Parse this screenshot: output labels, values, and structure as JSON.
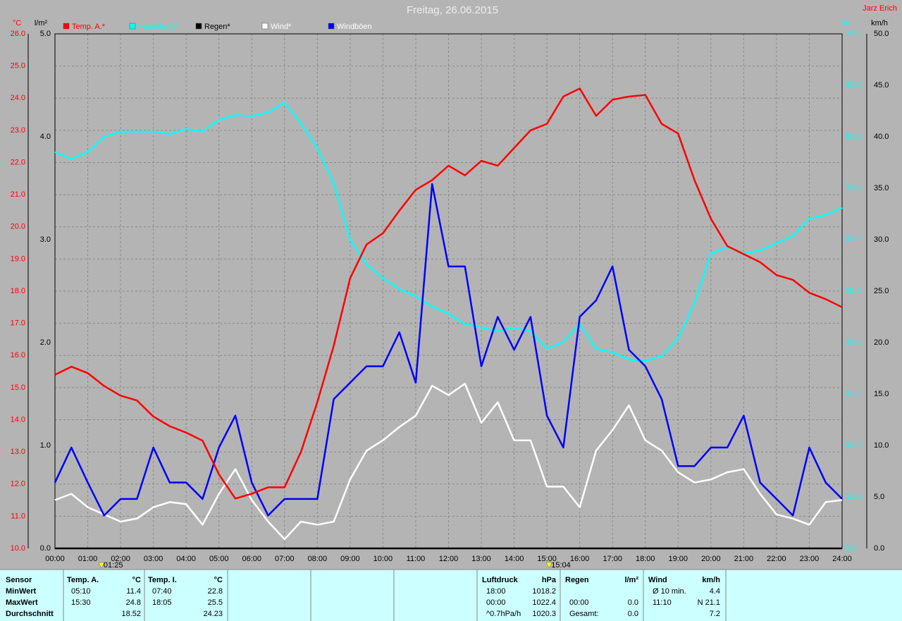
{
  "chart_data": {
    "type": "line",
    "title": "Freitag, 26.06.2015",
    "author": "Jarz Erich",
    "x": [
      0,
      0.5,
      1,
      1.5,
      2,
      2.5,
      3,
      3.5,
      4,
      4.5,
      5,
      5.5,
      6,
      6.5,
      7,
      7.5,
      8,
      8.5,
      9,
      9.5,
      10,
      10.5,
      11,
      11.5,
      12,
      12.5,
      13,
      13.5,
      14,
      14.5,
      15,
      15.5,
      16,
      16.5,
      17,
      17.5,
      18,
      18.5,
      19,
      19.5,
      20,
      20.5,
      21,
      21.5,
      22,
      22.5,
      23,
      23.5,
      24
    ],
    "xlim": [
      0,
      24
    ],
    "xticks": [
      {
        "value": 0,
        "label": "00:00"
      },
      {
        "value": 1,
        "label": "01:00"
      },
      {
        "value": 2,
        "label": "02:00"
      },
      {
        "value": 3,
        "label": "03:00"
      },
      {
        "value": 4,
        "label": "04:00"
      },
      {
        "value": 5,
        "label": "05:00"
      },
      {
        "value": 6,
        "label": "06:00"
      },
      {
        "value": 7,
        "label": "07:00"
      },
      {
        "value": 8,
        "label": "08:00"
      },
      {
        "value": 9,
        "label": "09:00"
      },
      {
        "value": 10,
        "label": "10:00"
      },
      {
        "value": 11,
        "label": "11:00"
      },
      {
        "value": 12,
        "label": "12:00"
      },
      {
        "value": 13,
        "label": "13:00"
      },
      {
        "value": 14,
        "label": "14:00"
      },
      {
        "value": 15,
        "label": "15:00"
      },
      {
        "value": 16,
        "label": "16:00"
      },
      {
        "value": 17,
        "label": "17:00"
      },
      {
        "value": 18,
        "label": "18:00"
      },
      {
        "value": 19,
        "label": "19:00"
      },
      {
        "value": 20,
        "label": "20:00"
      },
      {
        "value": 21,
        "label": "21:00"
      },
      {
        "value": 22,
        "label": "22:00"
      },
      {
        "value": 23,
        "label": "23:00"
      },
      {
        "value": 24,
        "label": "24:00"
      }
    ],
    "markers": [
      {
        "value": 1.4167,
        "label": "01:25"
      },
      {
        "value": 15.0667,
        "label": "15:04"
      }
    ],
    "grid": true,
    "axes": [
      {
        "unit": "°C",
        "color": "#ff0000",
        "lim": [
          10,
          26
        ],
        "ticks": [
          {
            "value": 10,
            "label": "10.0"
          },
          {
            "value": 11,
            "label": "11.0"
          },
          {
            "value": 12,
            "label": "12.0"
          },
          {
            "value": 13,
            "label": "13.0"
          },
          {
            "value": 14,
            "label": "14.0"
          },
          {
            "value": 15,
            "label": "15.0"
          },
          {
            "value": 16,
            "label": "16.0"
          },
          {
            "value": 17,
            "label": "17.0"
          },
          {
            "value": 18,
            "label": "18.0"
          },
          {
            "value": 19,
            "label": "19.0"
          },
          {
            "value": 20,
            "label": "20.0"
          },
          {
            "value": 21,
            "label": "21.0"
          },
          {
            "value": 22,
            "label": "22.0"
          },
          {
            "value": 23,
            "label": "23.0"
          },
          {
            "value": 24,
            "label": "24.0"
          },
          {
            "value": 25,
            "label": "25.0"
          },
          {
            "value": 26,
            "label": "26.0"
          }
        ]
      },
      {
        "unit": "l/m²",
        "color": "#000000",
        "lim": [
          0,
          5
        ],
        "ticks": [
          {
            "value": 0,
            "label": "0.0"
          },
          {
            "value": 1,
            "label": "1.0"
          },
          {
            "value": 2,
            "label": "2.0"
          },
          {
            "value": 3,
            "label": "3.0"
          },
          {
            "value": 4,
            "label": "4.0"
          },
          {
            "value": 5,
            "label": "5.0"
          }
        ]
      },
      {
        "unit": "%",
        "color": "#00ffff",
        "lim": [
          0,
          100
        ],
        "ticks": [
          {
            "value": 0,
            "label": "0.0"
          },
          {
            "value": 10,
            "label": "10.0"
          },
          {
            "value": 20,
            "label": "20.0"
          },
          {
            "value": 30,
            "label": "30.0"
          },
          {
            "value": 40,
            "label": "40.0"
          },
          {
            "value": 50,
            "label": "50.0"
          },
          {
            "value": 60,
            "label": "60.0"
          },
          {
            "value": 70,
            "label": "70.0"
          },
          {
            "value": 80,
            "label": "80.0"
          },
          {
            "value": 90,
            "label": "90.0"
          },
          100
        ]
      },
      {
        "unit": "km/h",
        "color": "#000000",
        "lim": [
          0,
          50
        ],
        "ticks": [
          {
            "value": 0,
            "label": "0.0"
          },
          {
            "value": 5,
            "label": "5.0"
          },
          {
            "value": 10,
            "label": "10.0"
          },
          {
            "value": 15,
            "label": "15.0"
          },
          {
            "value": 20,
            "label": "20.0"
          },
          {
            "value": 25,
            "label": "25.0"
          },
          {
            "value": 30,
            "label": "30.0"
          },
          {
            "value": 35,
            "label": "35.0"
          },
          {
            "value": 40,
            "label": "40.0"
          },
          {
            "value": 45,
            "label": "45.0"
          },
          {
            "value": 50,
            "label": "50.0"
          }
        ]
      }
    ],
    "series": [
      {
        "name": "Temp. A.*",
        "color": "#ff0000",
        "label_color": "#ff0000",
        "axis": 0,
        "values": [
          15.4,
          15.65,
          15.45,
          15.05,
          14.75,
          14.6,
          14.1,
          13.8,
          13.6,
          13.35,
          12.3,
          11.55,
          11.7,
          11.9,
          11.9,
          13.0,
          14.55,
          16.3,
          18.4,
          19.45,
          19.8,
          20.5,
          21.15,
          21.45,
          21.9,
          21.6,
          22.05,
          21.9,
          22.45,
          23.0,
          23.2,
          24.05,
          24.3,
          23.45,
          23.95,
          24.05,
          24.1,
          23.2,
          22.9,
          21.45,
          20.25,
          19.4,
          19.15,
          18.9,
          18.5,
          18.35,
          17.95,
          17.75,
          17.5
        ]
      },
      {
        "name": "Feuchte A.*",
        "color": "#00ffff",
        "label_color": "#00ffff",
        "axis": 2,
        "values": [
          77,
          75.7,
          77,
          80,
          81,
          81,
          81,
          80.5,
          81.5,
          81,
          83.3,
          84.2,
          84,
          84.7,
          86.7,
          82.6,
          77.8,
          71,
          60,
          55.2,
          52.5,
          50.4,
          49,
          47,
          45.6,
          43.6,
          42.9,
          42.2,
          42.9,
          42.2,
          38.8,
          40.1,
          43.6,
          38.8,
          38.1,
          36.7,
          36.4,
          37.4,
          40.8,
          47.7,
          57.3,
          58.6,
          57.3,
          57.9,
          59.3,
          60.7,
          64.1,
          64.8,
          66.2
        ]
      },
      {
        "name": "Regen*",
        "color": "#000000",
        "label_color": "#000000",
        "axis": 1,
        "values": [
          0,
          0,
          0,
          0,
          0,
          0,
          0,
          0,
          0,
          0,
          0,
          0,
          0,
          0,
          0,
          0,
          0,
          0,
          0,
          0,
          0,
          0,
          0,
          0,
          0,
          0,
          0,
          0,
          0,
          0,
          0,
          0,
          0,
          0,
          0,
          0,
          0,
          0,
          0,
          0,
          0,
          0,
          0,
          0,
          0,
          0,
          0,
          0,
          0
        ]
      },
      {
        "name": "Wind*",
        "color": "#ffffff",
        "label_color": "#ffffff",
        "axis": 3,
        "values": [
          4.7,
          5.3,
          4.0,
          3.3,
          2.6,
          2.9,
          4.0,
          4.5,
          4.3,
          2.3,
          5.3,
          7.7,
          4.7,
          2.6,
          0.9,
          2.6,
          2.3,
          2.6,
          6.7,
          9.5,
          10.5,
          11.8,
          12.9,
          15.8,
          14.9,
          16.0,
          12.2,
          14.2,
          10.5,
          10.5,
          6.0,
          6.0,
          4.0,
          9.5,
          11.5,
          13.9,
          10.5,
          9.5,
          7.4,
          6.4,
          6.7,
          7.4,
          7.7,
          5.3,
          3.3,
          2.9,
          2.3,
          4.5,
          4.7
        ]
      },
      {
        "name": "Windböen",
        "color": "#0000ff",
        "label_color": "#ffffff",
        "axis": 3,
        "values": [
          6.4,
          9.8,
          6.4,
          3.2,
          4.8,
          4.8,
          9.8,
          6.4,
          6.4,
          4.8,
          9.8,
          12.9,
          6.4,
          3.2,
          4.8,
          4.8,
          4.8,
          14.5,
          16.1,
          17.7,
          17.7,
          21.0,
          16.1,
          35.4,
          27.4,
          27.4,
          17.7,
          22.5,
          19.3,
          22.5,
          12.9,
          9.8,
          22.5,
          24.1,
          27.4,
          19.3,
          17.7,
          14.5,
          8.0,
          8.0,
          9.8,
          9.8,
          12.9,
          6.4,
          4.8,
          3.2,
          9.8,
          6.4,
          4.8
        ]
      }
    ]
  },
  "table": {
    "sensor": {
      "header": "Sensor",
      "rows": [
        "MinWert",
        "MaxWert",
        "Durchschnitt"
      ]
    },
    "groups": [
      {
        "header": "Temp. A.",
        "unit": "°C",
        "rows": [
          {
            "time": "05:10",
            "value": "11.4"
          },
          {
            "time": "15:30",
            "value": "24.8"
          },
          {
            "value": "18.52"
          }
        ]
      },
      {
        "header": "Temp. I.",
        "unit": "°C",
        "rows": [
          {
            "time": "07:40",
            "value": "22.8"
          },
          {
            "time": "18:05",
            "value": "25.5"
          },
          {
            "value": "24.23"
          }
        ]
      },
      {
        "header": "Luftdruck",
        "unit": "hPa",
        "rows": [
          {
            "time": "18:00",
            "value": "1018.2"
          },
          {
            "time": "00:00",
            "value": "1022.4"
          },
          {
            "time": "^0.7hPa/h",
            "value": "1020.3"
          }
        ]
      },
      {
        "header": "Regen",
        "unit": "l/m²",
        "rows": [
          null,
          {
            "time": "00:00",
            "value": "0.0"
          },
          {
            "time": "Gesamt:",
            "value": "0.0"
          }
        ]
      },
      {
        "header": "Wind",
        "unit": "km/h",
        "rows": [
          {
            "time": "Ø 10 min.",
            "value": "4.4"
          },
          {
            "time": "11:10",
            "value": "N 21.1"
          },
          {
            "value": "7.2"
          }
        ]
      }
    ]
  }
}
